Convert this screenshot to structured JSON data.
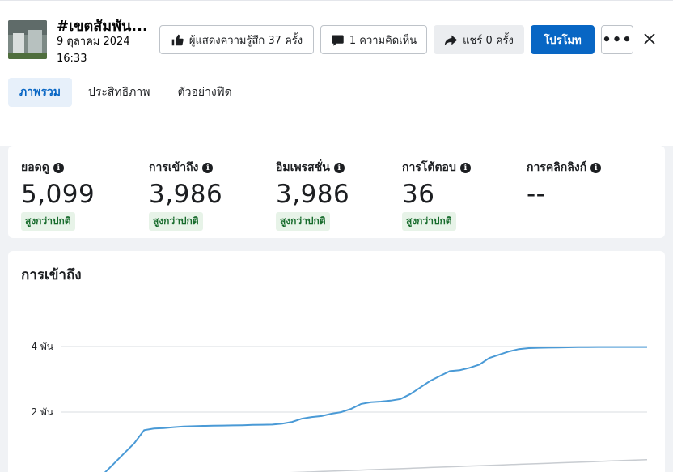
{
  "post": {
    "title": "#เขตสัมพัน...",
    "date": "9 ตุลาคม 2024 16:33"
  },
  "actions": {
    "reactions": "ผู้แสดงความรู้สึก 37 ครั้ง",
    "comments": "1 ความคิดเห็น",
    "shares": "แชร์ 0 ครั้ง",
    "promote": "โปรโมท",
    "more": "•••"
  },
  "tabs": [
    "ภาพรวม",
    "ประสิทธิภาพ",
    "ตัวอย่างฟีด"
  ],
  "active_tab": 0,
  "metrics": [
    {
      "label": "ยอดดู",
      "value": "5,099",
      "badge": "สูงกว่าปกติ"
    },
    {
      "label": "การเข้าถึง",
      "value": "3,986",
      "badge": "สูงกว่าปกติ"
    },
    {
      "label": "อิมเพรสชั่น",
      "value": "3,986",
      "badge": "สูงกว่าปกติ"
    },
    {
      "label": "การโต้ตอบ",
      "value": "36",
      "badge": "สูงกว่าปกติ"
    },
    {
      "label": "การคลิกลิงก์",
      "value": "--",
      "badge": ""
    }
  ],
  "colors": {
    "accent": "#0866c4",
    "line_primary": "#4a9ad6",
    "line_secondary": "#c8ccd1",
    "badge_bg": "#e7f3e8",
    "badge_text": "#176b2c"
  },
  "chart_data": {
    "type": "line",
    "title": "การเข้าถึง",
    "ytick_labels": [
      "4 พัน",
      "2 พัน"
    ],
    "ytick_values": [
      4000,
      2000
    ],
    "ylim": [
      0,
      4500
    ],
    "series": [
      {
        "values": [
          0,
          20,
          150,
          450,
          750,
          1050,
          1450,
          1500,
          1510,
          1540,
          1560,
          1570,
          1580,
          1585,
          1590,
          1595,
          1600,
          1610,
          1615,
          1620,
          1650,
          1700,
          1800,
          1850,
          1880,
          1950,
          2000,
          2100,
          2250,
          2300,
          2320,
          2350,
          2400,
          2550,
          2750,
          2950,
          3100,
          3250,
          3280,
          3350,
          3450,
          3650,
          3750,
          3850,
          3920,
          3950,
          3960,
          3965,
          3970,
          3975,
          3980,
          3982,
          3984,
          3985,
          3986,
          3986,
          3986,
          3986
        ]
      },
      {
        "values": [
          0,
          5,
          10,
          15,
          20,
          30,
          40,
          50,
          60,
          70,
          80,
          90,
          100,
          110,
          120,
          130,
          140,
          150,
          160,
          170,
          180,
          190,
          200,
          210,
          220,
          230,
          240,
          250,
          260,
          270,
          280,
          290,
          300,
          310,
          320,
          330,
          340,
          350,
          360,
          370,
          380,
          390,
          400,
          410,
          420,
          430,
          440,
          450,
          460,
          470,
          480,
          490,
          500,
          510,
          520,
          530,
          540,
          550
        ]
      }
    ]
  }
}
